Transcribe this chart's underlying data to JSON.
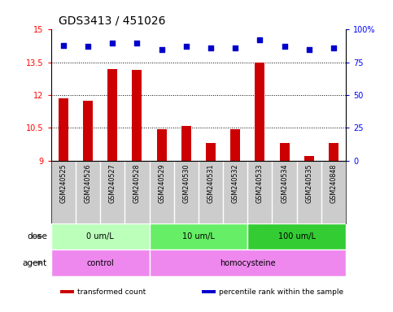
{
  "title": "GDS3413 / 451026",
  "samples": [
    "GSM240525",
    "GSM240526",
    "GSM240527",
    "GSM240528",
    "GSM240529",
    "GSM240530",
    "GSM240531",
    "GSM240532",
    "GSM240533",
    "GSM240534",
    "GSM240535",
    "GSM240848"
  ],
  "transformed_count": [
    11.85,
    11.75,
    13.2,
    13.15,
    10.45,
    10.6,
    9.8,
    10.45,
    13.5,
    9.8,
    9.2,
    9.8
  ],
  "percentile_rank": [
    88,
    87,
    90,
    90,
    85,
    87,
    86,
    86,
    92,
    87,
    85,
    86
  ],
  "bar_color": "#cc0000",
  "dot_color": "#0000cc",
  "ylim_left": [
    9,
    15
  ],
  "ylim_right": [
    0,
    100
  ],
  "yticks_left": [
    9,
    10.5,
    12,
    13.5,
    15
  ],
  "ytick_labels_left": [
    "9",
    "10.5",
    "12",
    "13.5",
    "15"
  ],
  "yticks_right": [
    0,
    25,
    50,
    75,
    100
  ],
  "ytick_labels_right": [
    "0",
    "25",
    "50",
    "75",
    "100%"
  ],
  "hlines": [
    10.5,
    12,
    13.5
  ],
  "dose_groups": [
    {
      "label": "0 um/L",
      "start": 0,
      "end": 4,
      "color": "#bbffbb"
    },
    {
      "label": "10 um/L",
      "start": 4,
      "end": 8,
      "color": "#66ee66"
    },
    {
      "label": "100 um/L",
      "start": 8,
      "end": 12,
      "color": "#33cc33"
    }
  ],
  "agent_groups": [
    {
      "label": "control",
      "start": 0,
      "end": 4,
      "color": "#ee88ee"
    },
    {
      "label": "homocysteine",
      "start": 4,
      "end": 12,
      "color": "#ee88ee"
    }
  ],
  "legend_items": [
    {
      "color": "#cc0000",
      "label": "transformed count"
    },
    {
      "color": "#0000cc",
      "label": "percentile rank within the sample"
    }
  ],
  "sample_bg_color": "#cccccc",
  "plot_bg_color": "#ffffff",
  "title_fontsize": 10,
  "tick_fontsize": 7,
  "label_fontsize": 7.5,
  "bar_width": 0.4
}
